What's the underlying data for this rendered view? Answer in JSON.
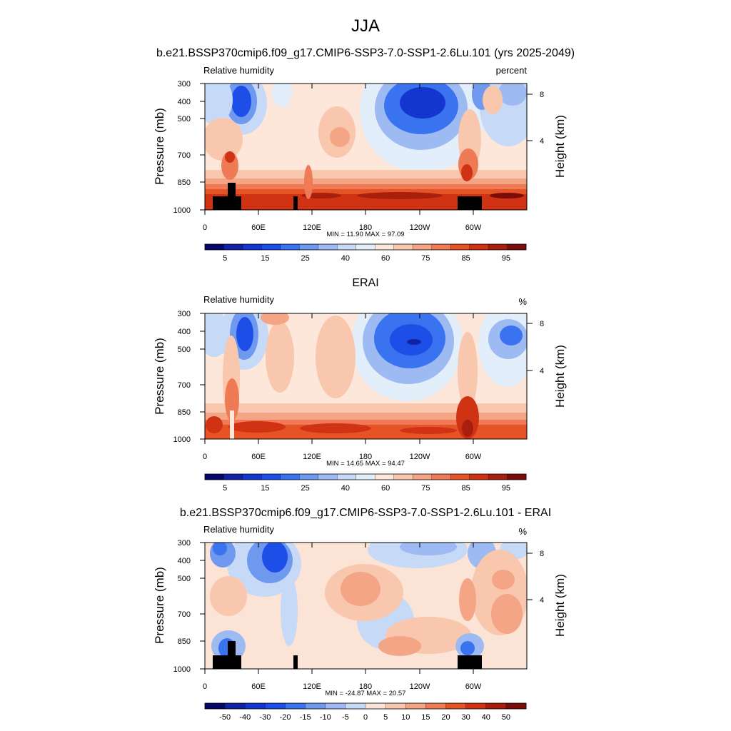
{
  "page_title": "JJA",
  "chart_data": [
    {
      "type": "heatmap",
      "title": "b.e21.BSSP370cmip6.f09_g17.CMIP6-SSP3-7.0-SSP1-2.6Lu.101 (yrs 2025-2049)",
      "left_label": "Relative humidity",
      "right_label": "percent",
      "ylabel": "Pressure (mb)",
      "ylabel_right": "Height (km)",
      "x_ticks": [
        "0",
        "60E",
        "120E",
        "180",
        "120W",
        "60W"
      ],
      "x_tick_lon": [
        0,
        60,
        120,
        180,
        240,
        300
      ],
      "xlim": [
        0,
        360
      ],
      "y_ticks": [
        "300",
        "400",
        "500",
        "700",
        "850",
        "1000"
      ],
      "y_tick_values": [
        300,
        400,
        500,
        700,
        850,
        1000
      ],
      "ylim": [
        1000,
        300
      ],
      "yscale": "log",
      "height_ticks": [
        "8",
        "4"
      ],
      "height_tick_km": [
        8,
        4
      ],
      "minmax": "MIN = 11.90  MAX = 97.09",
      "min": 11.9,
      "max": 97.09,
      "colorbar_labels": [
        "5",
        "15",
        "25",
        "40",
        "60",
        "75",
        "85",
        "95"
      ],
      "colorbar_levels": [
        5,
        10,
        15,
        20,
        25,
        30,
        40,
        50,
        60,
        70,
        75,
        80,
        85,
        90,
        95
      ],
      "topography": true
    },
    {
      "type": "heatmap",
      "title": "ERAI",
      "left_label": "Relative humidity",
      "right_label": "%",
      "ylabel": "Pressure (mb)",
      "ylabel_right": "Height (km)",
      "x_ticks": [
        "0",
        "60E",
        "120E",
        "180",
        "120W",
        "60W"
      ],
      "x_tick_lon": [
        0,
        60,
        120,
        180,
        240,
        300
      ],
      "xlim": [
        0,
        360
      ],
      "y_ticks": [
        "300",
        "400",
        "500",
        "700",
        "850",
        "1000"
      ],
      "y_tick_values": [
        300,
        400,
        500,
        700,
        850,
        1000
      ],
      "ylim": [
        1000,
        300
      ],
      "yscale": "log",
      "height_ticks": [
        "8",
        "4"
      ],
      "height_tick_km": [
        8,
        4
      ],
      "minmax": "MIN = 14.65  MAX = 94.47",
      "min": 14.65,
      "max": 94.47,
      "colorbar_labels": [
        "5",
        "15",
        "25",
        "40",
        "60",
        "75",
        "85",
        "95"
      ],
      "colorbar_levels": [
        5,
        10,
        15,
        20,
        25,
        30,
        40,
        50,
        60,
        70,
        75,
        80,
        85,
        90,
        95
      ],
      "topography": false
    },
    {
      "type": "heatmap",
      "title": "b.e21.BSSP370cmip6.f09_g17.CMIP6-SSP3-7.0-SSP1-2.6Lu.101 - ERAI",
      "left_label": "Relative humidity",
      "right_label": "%",
      "ylabel": "Pressure (mb)",
      "ylabel_right": "Height (km)",
      "x_ticks": [
        "0",
        "60E",
        "120E",
        "180",
        "120W",
        "60W"
      ],
      "x_tick_lon": [
        0,
        60,
        120,
        180,
        240,
        300
      ],
      "xlim": [
        0,
        360
      ],
      "y_ticks": [
        "300",
        "400",
        "500",
        "700",
        "850",
        "1000"
      ],
      "y_tick_values": [
        300,
        400,
        500,
        700,
        850,
        1000
      ],
      "ylim": [
        1000,
        300
      ],
      "yscale": "log",
      "height_ticks": [
        "8",
        "4"
      ],
      "height_tick_km": [
        8,
        4
      ],
      "minmax": "MIN = -24.87  MAX = 20.57",
      "min": -24.87,
      "max": 20.57,
      "colorbar_labels": [
        "-50",
        "-40",
        "-30",
        "-20",
        "-15",
        "-10",
        "-5",
        "0",
        "5",
        "10",
        "15",
        "20",
        "30",
        "40",
        "50"
      ],
      "colorbar_levels": [
        -50,
        -40,
        -30,
        -20,
        -15,
        -10,
        -5,
        0,
        5,
        10,
        15,
        20,
        30,
        40,
        50
      ],
      "topography": true
    }
  ],
  "colors": {
    "colorbar": [
      "#06066b",
      "#0f23a4",
      "#1436d0",
      "#1d4fe8",
      "#3a73f0",
      "#6f99ef",
      "#9ebaf2",
      "#c6d9f6",
      "#e3eefb",
      "#fde7da",
      "#f9c7ad",
      "#f4a585",
      "#ee7b55",
      "#e65325",
      "#cf3313",
      "#a81f0d",
      "#7a0d0a"
    ],
    "diff_colorbar": [
      "#06066b",
      "#0f23a4",
      "#1436d0",
      "#1d4fe8",
      "#3a73f0",
      "#6f99ef",
      "#9ebaf2",
      "#c6d9f6",
      "#fbe4d6",
      "#f9c7ad",
      "#f4a585",
      "#ee7b55",
      "#e65325",
      "#cf3313",
      "#a81f0d",
      "#7a0d0a"
    ],
    "topography": "#000000"
  }
}
